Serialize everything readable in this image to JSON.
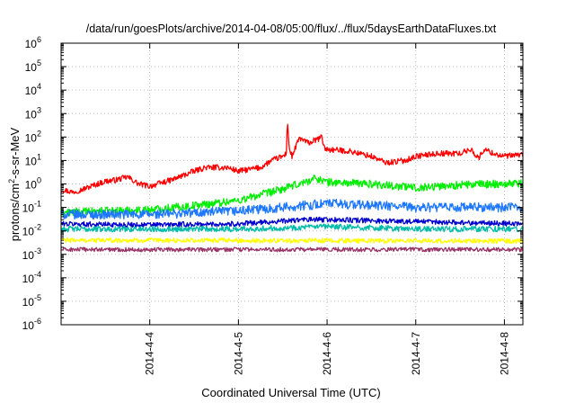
{
  "chart_data": {
    "type": "line",
    "title": "/data/run/goesPlots/archive/2014-04-08/05:00/flux/../flux/5daysEarthDataFluxes.txt",
    "xlabel": "Coordinated Universal Time (UTC)",
    "ylabel_parts": {
      "pre": "protons/cm",
      "sup": "2",
      "post": "-s-sr-MeV"
    },
    "y_scale": "log",
    "ylim": [
      1e-06,
      1000000.0
    ],
    "xlim": [
      "2014-04-03 00:00",
      "2014-04-08 05:00"
    ],
    "grid": true,
    "legend": "none",
    "y_ticks": [
      {
        "base": "10",
        "exp": "-6",
        "value": 1e-06
      },
      {
        "base": "10",
        "exp": "-5",
        "value": 1e-05
      },
      {
        "base": "10",
        "exp": "-4",
        "value": 0.0001
      },
      {
        "base": "10",
        "exp": "-3",
        "value": 0.001
      },
      {
        "base": "10",
        "exp": "-2",
        "value": 0.01
      },
      {
        "base": "10",
        "exp": "-1",
        "value": 0.1
      },
      {
        "base": "10",
        "exp": "0",
        "value": 1
      },
      {
        "base": "10",
        "exp": "1",
        "value": 10
      },
      {
        "base": "10",
        "exp": "2",
        "value": 100
      },
      {
        "base": "10",
        "exp": "3",
        "value": 1000
      },
      {
        "base": "10",
        "exp": "4",
        "value": 10000
      },
      {
        "base": "10",
        "exp": "5",
        "value": 100000
      },
      {
        "base": "10",
        "exp": "6",
        "value": 1000000
      }
    ],
    "x_ticks": [
      {
        "label": "2014-4-4",
        "value": "2014-04-04 00:00"
      },
      {
        "label": "2014-4-5",
        "value": "2014-04-05 00:00"
      },
      {
        "label": "2014-4-6",
        "value": "2014-04-06 00:00"
      },
      {
        "label": "2014-4-7",
        "value": "2014-04-07 00:00"
      },
      {
        "label": "2014-4-8",
        "value": "2014-04-08 00:00"
      }
    ],
    "series": [
      {
        "color": "#ff0000",
        "noise": 0.12,
        "points": [
          [
            "2014-04-03 00:00",
            0.6
          ],
          [
            "2014-04-03 03:00",
            0.45
          ],
          [
            "2014-04-03 06:00",
            0.6
          ],
          [
            "2014-04-03 09:00",
            0.9
          ],
          [
            "2014-04-03 12:00",
            1.3
          ],
          [
            "2014-04-03 15:00",
            1.5
          ],
          [
            "2014-04-03 18:00",
            2.0
          ],
          [
            "2014-04-03 21:00",
            1.0
          ],
          [
            "2014-04-04 00:00",
            0.8
          ],
          [
            "2014-04-04 06:00",
            1.5
          ],
          [
            "2014-04-04 12:00",
            3.5
          ],
          [
            "2014-04-04 15:00",
            5.0
          ],
          [
            "2014-04-04 21:00",
            5.0
          ],
          [
            "2014-04-05 00:00",
            3.5
          ],
          [
            "2014-04-05 06:00",
            5.0
          ],
          [
            "2014-04-05 09:00",
            10
          ],
          [
            "2014-04-05 12:00",
            15
          ],
          [
            "2014-04-05 13:00",
            20
          ],
          [
            "2014-04-05 13:15",
            700
          ],
          [
            "2014-04-05 13:45",
            30
          ],
          [
            "2014-04-05 14:30",
            15
          ],
          [
            "2014-04-05 16:30",
            90
          ],
          [
            "2014-04-05 19:00",
            55
          ],
          [
            "2014-04-05 21:30",
            80
          ],
          [
            "2014-04-05 22:30",
            100
          ],
          [
            "2014-04-05 23:30",
            30
          ],
          [
            "2014-04-06 06:00",
            25
          ],
          [
            "2014-04-06 12:00",
            15
          ],
          [
            "2014-04-06 16:00",
            8
          ],
          [
            "2014-04-06 21:00",
            10
          ],
          [
            "2014-04-07 00:00",
            15
          ],
          [
            "2014-04-07 06:00",
            20
          ],
          [
            "2014-04-07 12:00",
            20
          ],
          [
            "2014-04-07 15:00",
            30
          ],
          [
            "2014-04-07 17:00",
            12
          ],
          [
            "2014-04-07 18:30",
            30
          ],
          [
            "2014-04-07 21:00",
            20
          ],
          [
            "2014-04-08 00:00",
            15
          ],
          [
            "2014-04-08 05:00",
            18
          ]
        ]
      },
      {
        "color": "#00ee00",
        "noise": 0.17,
        "points": [
          [
            "2014-04-03 00:00",
            0.06
          ],
          [
            "2014-04-04 00:00",
            0.08
          ],
          [
            "2014-04-04 12:00",
            0.12
          ],
          [
            "2014-04-05 00:00",
            0.2
          ],
          [
            "2014-04-05 12:00",
            0.6
          ],
          [
            "2014-04-05 18:00",
            1.2
          ],
          [
            "2014-04-05 21:00",
            1.8
          ],
          [
            "2014-04-06 00:00",
            1.2
          ],
          [
            "2014-04-06 12:00",
            1.0
          ],
          [
            "2014-04-07 00:00",
            0.7
          ],
          [
            "2014-04-07 12:00",
            0.9
          ],
          [
            "2014-04-08 05:00",
            1.1
          ]
        ]
      },
      {
        "color": "#1e78ff",
        "noise": 0.2,
        "points": [
          [
            "2014-04-03 00:00",
            0.05
          ],
          [
            "2014-04-04 00:00",
            0.05
          ],
          [
            "2014-04-05 00:00",
            0.07
          ],
          [
            "2014-04-05 18:00",
            0.12
          ],
          [
            "2014-04-06 00:00",
            0.15
          ],
          [
            "2014-04-07 00:00",
            0.1
          ],
          [
            "2014-04-08 05:00",
            0.1
          ]
        ]
      },
      {
        "color": "#0000cc",
        "noise": 0.11,
        "points": [
          [
            "2014-04-03 00:00",
            0.02
          ],
          [
            "2014-04-04 00:00",
            0.018
          ],
          [
            "2014-04-05 00:00",
            0.02
          ],
          [
            "2014-04-05 18:00",
            0.03
          ],
          [
            "2014-04-06 00:00",
            0.03
          ],
          [
            "2014-04-07 00:00",
            0.025
          ],
          [
            "2014-04-08 05:00",
            0.02
          ]
        ]
      },
      {
        "color": "#00bbaa",
        "noise": 0.12,
        "points": [
          [
            "2014-04-03 00:00",
            0.012
          ],
          [
            "2014-04-05 00:00",
            0.012
          ],
          [
            "2014-04-06 00:00",
            0.015
          ],
          [
            "2014-04-07 00:00",
            0.012
          ],
          [
            "2014-04-08 05:00",
            0.012
          ]
        ]
      },
      {
        "color": "#ffff00",
        "noise": 0.1,
        "points": [
          [
            "2014-04-03 00:00",
            0.004
          ],
          [
            "2014-04-08 05:00",
            0.0037
          ]
        ]
      },
      {
        "color": "#993366",
        "noise": 0.09,
        "points": [
          [
            "2014-04-03 00:00",
            0.0016
          ],
          [
            "2014-04-08 05:00",
            0.0016
          ]
        ]
      }
    ]
  }
}
